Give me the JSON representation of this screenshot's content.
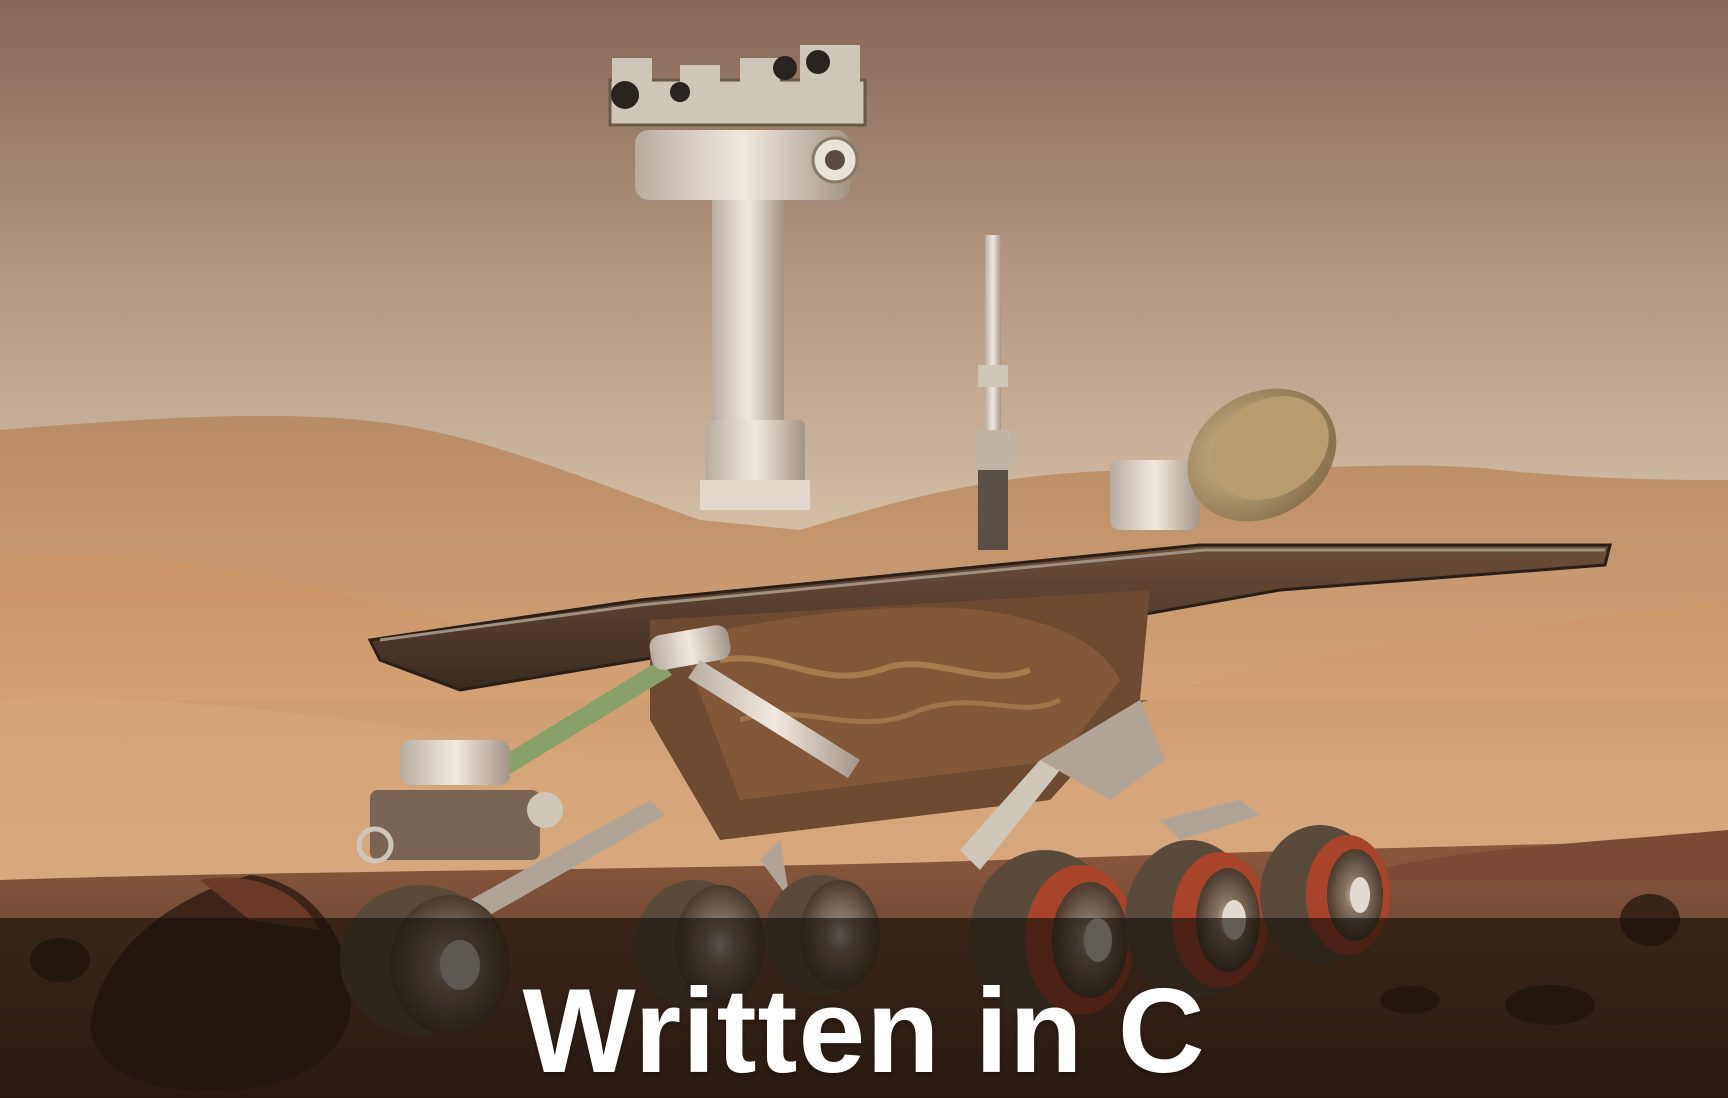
{
  "caption": {
    "text": "Written in C"
  },
  "scene": {
    "subject": "mars-rover",
    "palette": {
      "sky_top": "#8a6a58",
      "sky_horizon": "#cdb79e",
      "dunes": "#c08a5d",
      "ground": "#6b4330",
      "rover_metal": "#d9cfc4",
      "solar_panel": "#5a4030",
      "caption_bar": "#140e0a"
    }
  }
}
